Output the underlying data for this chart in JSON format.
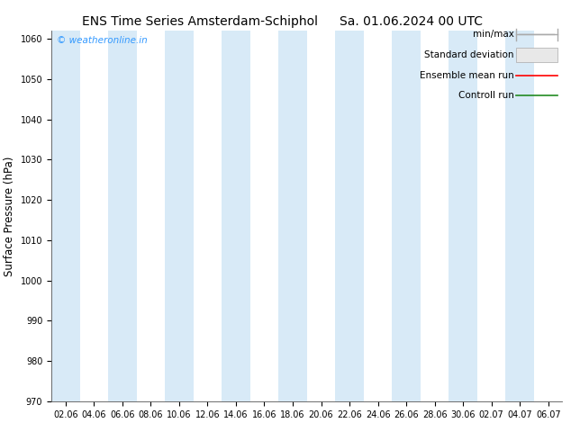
{
  "title_left": "ENS Time Series Amsterdam-Schiphol",
  "title_right": "Sa. 01.06.2024 00 UTC",
  "ylabel": "Surface Pressure (hPa)",
  "ylim": [
    970,
    1062
  ],
  "yticks": [
    970,
    980,
    990,
    1000,
    1010,
    1020,
    1030,
    1040,
    1050,
    1060
  ],
  "xtick_labels": [
    "02.06",
    "04.06",
    "06.06",
    "08.06",
    "10.06",
    "12.06",
    "14.06",
    "16.06",
    "18.06",
    "20.06",
    "22.06",
    "24.06",
    "26.06",
    "28.06",
    "30.06",
    "02.07",
    "04.07",
    "06.07"
  ],
  "band_positions": [
    0,
    2,
    4,
    6,
    8,
    10,
    12,
    14,
    16
  ],
  "background_color": "#ffffff",
  "band_color": "#d8eaf7",
  "watermark": "© weatheronline.in",
  "watermark_color": "#3399ff",
  "legend_items": [
    "min/max",
    "Standard deviation",
    "Ensemble mean run",
    "Controll run"
  ],
  "legend_line_colors": [
    "#aaaaaa",
    "#cccccc",
    "#ff0000",
    "#228B22"
  ],
  "title_fontsize": 10,
  "tick_fontsize": 7,
  "ylabel_fontsize": 8.5,
  "legend_fontsize": 7.5
}
